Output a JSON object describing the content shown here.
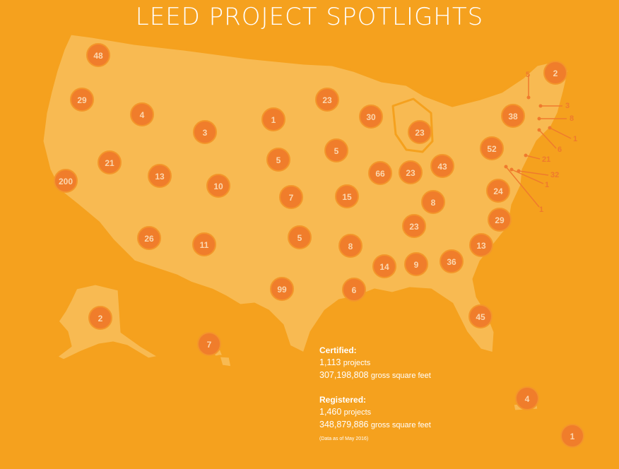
{
  "title": "LEED PROJECT SPOTLIGHTS",
  "colors": {
    "background": "#F5A11E",
    "land": "#F8BA52",
    "marker": "#F07D2B",
    "marker_text": "#FBD7B0",
    "callout": "#EF7A2D"
  },
  "stats": {
    "certified": {
      "heading": "Certified:",
      "projects_num": "1,113",
      "projects_unit": "projects",
      "area_num": "307,198,808",
      "area_unit": "gross square feet"
    },
    "registered": {
      "heading": "Registered:",
      "projects_num": "1,460",
      "projects_unit": "projects",
      "area_num": "348,879,886",
      "area_unit": "gross square feet"
    },
    "note": "(Data as of May 2016)"
  },
  "markers": [
    {
      "value": "48"
    },
    {
      "value": "29"
    },
    {
      "value": "4"
    },
    {
      "value": "3"
    },
    {
      "value": "1"
    },
    {
      "value": "23"
    },
    {
      "value": "30"
    },
    {
      "value": "23"
    },
    {
      "value": "38"
    },
    {
      "value": "2"
    },
    {
      "value": "200"
    },
    {
      "value": "21"
    },
    {
      "value": "13"
    },
    {
      "value": "10"
    },
    {
      "value": "5"
    },
    {
      "value": "5"
    },
    {
      "value": "66"
    },
    {
      "value": "23"
    },
    {
      "value": "43"
    },
    {
      "value": "52"
    },
    {
      "value": "7"
    },
    {
      "value": "15"
    },
    {
      "value": "8"
    },
    {
      "value": "24"
    },
    {
      "value": "26"
    },
    {
      "value": "11"
    },
    {
      "value": "5"
    },
    {
      "value": "8"
    },
    {
      "value": "23"
    },
    {
      "value": "29"
    },
    {
      "value": "14"
    },
    {
      "value": "9"
    },
    {
      "value": "36"
    },
    {
      "value": "13"
    },
    {
      "value": "99"
    },
    {
      "value": "6"
    },
    {
      "value": "45"
    },
    {
      "value": "2"
    },
    {
      "value": "7"
    },
    {
      "value": "4"
    },
    {
      "value": "1"
    }
  ],
  "callouts": [
    {
      "value": "5"
    },
    {
      "value": "3"
    },
    {
      "value": "8"
    },
    {
      "value": "1"
    },
    {
      "value": "6"
    },
    {
      "value": "21"
    },
    {
      "value": "32"
    },
    {
      "value": "1"
    },
    {
      "value": "1"
    }
  ]
}
